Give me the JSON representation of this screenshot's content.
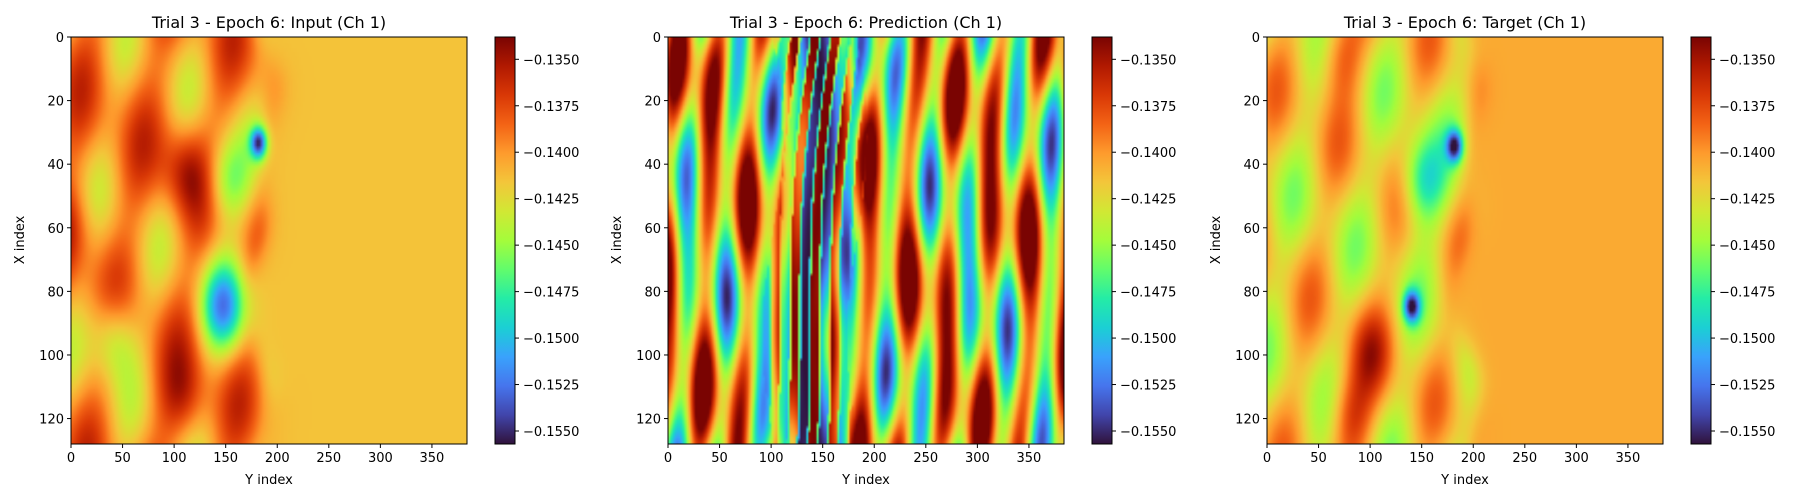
{
  "figure": {
    "colormap": "turbo",
    "colors": {
      "turbo_stops": [
        "#30123b",
        "#4145ab",
        "#4675ed",
        "#39a2fc",
        "#1bcfd4",
        "#24eca6",
        "#61fc6c",
        "#a4fc3b",
        "#d1e834",
        "#f3c63a",
        "#fe9b2d",
        "#f36315",
        "#d93806",
        "#b11901",
        "#7a0402"
      ],
      "axis": "#000000",
      "background": "#ffffff"
    }
  },
  "chart_data": [
    {
      "type": "heatmap",
      "title": "Trial 3 - Epoch 6: Input (Ch 1)",
      "xlabel": "Y index",
      "ylabel": "X index",
      "xlim": [
        0,
        384
      ],
      "ylim": [
        128,
        0
      ],
      "x_ticks": [
        0,
        50,
        100,
        150,
        200,
        250,
        300,
        350
      ],
      "y_ticks": [
        0,
        20,
        40,
        60,
        80,
        100,
        120
      ],
      "colorbar": {
        "range": [
          -0.1557,
          -0.1338
        ],
        "ticks": [
          -0.135,
          -0.1375,
          -0.14,
          -0.1425,
          -0.145,
          -0.1475,
          -0.15,
          -0.1525,
          -0.155
        ],
        "tick_labels": [
          "−0.1350",
          "−0.1375",
          "−0.1400",
          "−0.1425",
          "−0.1450",
          "−0.1475",
          "−0.1500",
          "−0.1525",
          "−0.1550"
        ]
      },
      "field": {
        "front_y": 185,
        "left_band_value": -0.1396,
        "right_field_value": -0.1415,
        "features": [
          {
            "y": 182,
            "x": 33,
            "value": -0.1535
          },
          {
            "y": 150,
            "x": 45,
            "value": -0.146
          },
          {
            "y": 148,
            "x": 85,
            "value": -0.15
          },
          {
            "y": 110,
            "x": 42,
            "value": -0.135
          },
          {
            "y": 0,
            "x": 60,
            "value": -0.1365
          },
          {
            "y": 110,
            "x": 115,
            "value": -0.136
          },
          {
            "y": 40,
            "x": 95,
            "value": -0.1455
          }
        ]
      },
      "grid": false
    },
    {
      "type": "heatmap",
      "title": "Trial 3 - Epoch 6: Prediction (Ch 1)",
      "xlabel": "Y index",
      "ylabel": "X index",
      "xlim": [
        0,
        384
      ],
      "ylim": [
        128,
        0
      ],
      "x_ticks": [
        0,
        50,
        100,
        150,
        200,
        250,
        300,
        350
      ],
      "y_ticks": [
        0,
        20,
        40,
        60,
        80,
        100,
        120
      ],
      "colorbar": {
        "range": [
          -0.1557,
          -0.1338
        ],
        "ticks": [
          -0.135,
          -0.1375,
          -0.14,
          -0.1425,
          -0.145,
          -0.1475,
          -0.15,
          -0.1525,
          -0.155
        ],
        "tick_labels": [
          "−0.1350",
          "−0.1375",
          "−0.1400",
          "−0.1425",
          "−0.1450",
          "−0.1475",
          "−0.1500",
          "−0.1525",
          "−0.1550"
        ]
      },
      "field": {
        "pattern": "vertical wave bands (banded oscillations along Y index)",
        "saturated_core_y_range": [
          110,
          180
        ],
        "min_value": -0.1557,
        "max_value": -0.1338
      },
      "grid": false
    },
    {
      "type": "heatmap",
      "title": "Trial 3 - Epoch 6: Target (Ch 1)",
      "xlabel": "Y index",
      "ylabel": "X index",
      "xlim": [
        0,
        384
      ],
      "ylim": [
        128,
        0
      ],
      "x_ticks": [
        0,
        50,
        100,
        150,
        200,
        250,
        300,
        350
      ],
      "y_ticks": [
        0,
        20,
        40,
        60,
        80,
        100,
        120
      ],
      "colorbar": {
        "range": [
          -0.1557,
          -0.1338
        ],
        "ticks": [
          -0.135,
          -0.1375,
          -0.14,
          -0.1425,
          -0.145,
          -0.1475,
          -0.15,
          -0.1525,
          -0.155
        ],
        "tick_labels": [
          "−0.1350",
          "−0.1375",
          "−0.1400",
          "−0.1425",
          "−0.1450",
          "−0.1475",
          "−0.1500",
          "−0.1525",
          "−0.1550"
        ]
      },
      "field": {
        "front_y": 195,
        "left_band_value": -0.142,
        "right_field_value": -0.1406,
        "features": [
          {
            "y": 182,
            "x": 34,
            "value": -0.155
          },
          {
            "y": 150,
            "x": 45,
            "value": -0.1495
          },
          {
            "y": 140,
            "x": 85,
            "value": -0.1545
          },
          {
            "y": 70,
            "x": 5,
            "value": -0.1375
          },
          {
            "y": 100,
            "x": 100,
            "value": -0.138
          },
          {
            "y": 80,
            "x": 120,
            "value": -0.1365
          }
        ]
      },
      "grid": false
    }
  ]
}
